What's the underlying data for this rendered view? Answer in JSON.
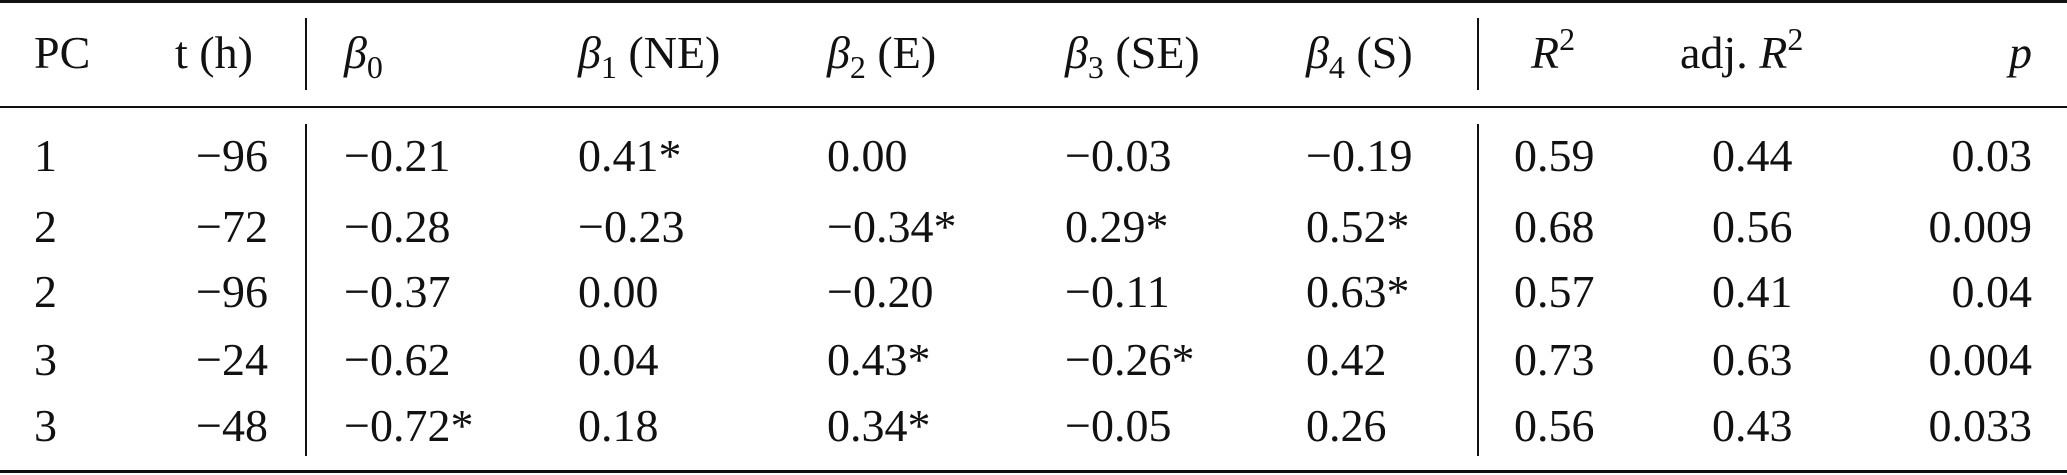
{
  "table": {
    "headers": {
      "pc": "PC",
      "t": "t (h)",
      "b0_sym": "β",
      "b0_sub": "0",
      "b1_sym": "β",
      "b1_sub": "1",
      "b1_dir": " (NE)",
      "b2_sym": "β",
      "b2_sub": "2",
      "b2_dir": " (E)",
      "b3_sym": "β",
      "b3_sub": "3",
      "b3_dir": " (SE)",
      "b4_sym": "β",
      "b4_sub": "4",
      "b4_dir": " (S)",
      "r2_sym": "R",
      "r2_sup": "2",
      "adj_prefix": "adj. ",
      "adj_sym": "R",
      "adj_sup": "2",
      "p": "p"
    },
    "rows": [
      [
        "1",
        "−96",
        "−0.21",
        "0.41*",
        "0.00",
        "−0.03",
        "−0.19",
        "0.59",
        "0.44",
        "0.03"
      ],
      [
        "2",
        "−72",
        "−0.28",
        "−0.23",
        "−0.34*",
        "0.29*",
        "0.52*",
        "0.68",
        "0.56",
        "0.009"
      ],
      [
        "2",
        "−96",
        "−0.37",
        "0.00",
        "−0.20",
        "−0.11",
        "0.63*",
        "0.57",
        "0.41",
        "0.04"
      ],
      [
        "3",
        "−24",
        "−0.62",
        "0.04",
        "0.43*",
        "−0.26*",
        "0.42",
        "0.73",
        "0.63",
        "0.004"
      ],
      [
        "3",
        "−48",
        "−0.72*",
        "0.18",
        "0.34*",
        "−0.05",
        "0.26",
        "0.56",
        "0.43",
        "0.033"
      ]
    ]
  }
}
